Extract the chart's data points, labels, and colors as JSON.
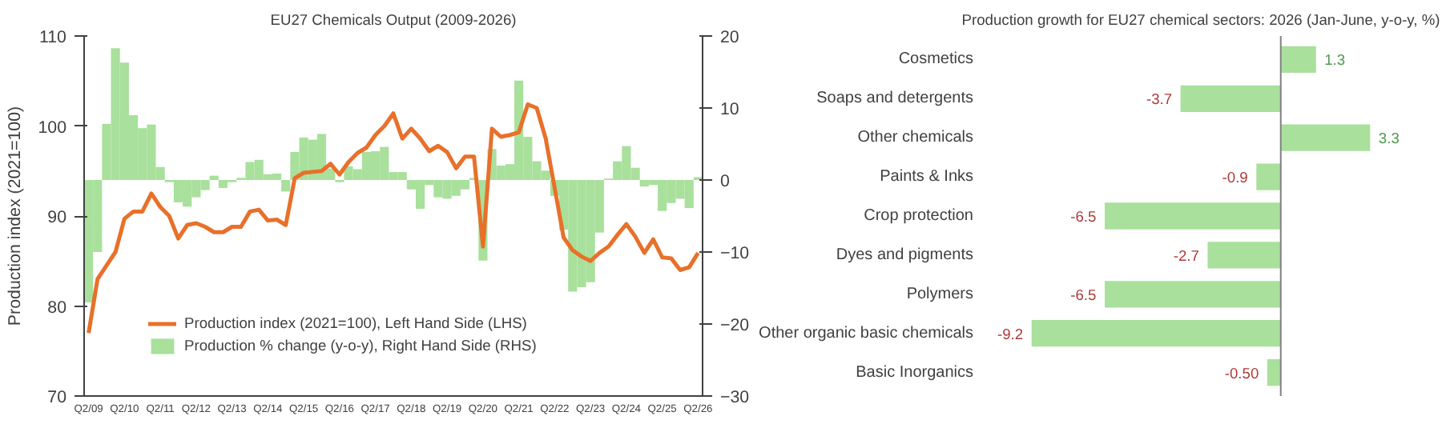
{
  "chart_data": [
    {
      "type": "bar",
      "title": "EU27 Chemicals Output (2009-2026)",
      "ylabel": "Production index (2021=100)",
      "categories": [
        "Q2/09",
        null,
        null,
        null,
        "Q2/10",
        null,
        null,
        null,
        "Q2/11",
        null,
        null,
        null,
        "Q2/12",
        null,
        null,
        null,
        "Q2/13",
        null,
        null,
        null,
        "Q2/14",
        null,
        null,
        null,
        "Q2/15",
        null,
        null,
        null,
        "Q2/16",
        null,
        null,
        null,
        "Q2/17",
        null,
        null,
        null,
        "Q2/18",
        null,
        null,
        null,
        "Q2/19",
        null,
        null,
        null,
        "Q2/20",
        null,
        null,
        null,
        "Q2/21",
        null,
        null,
        null,
        "Q2/22",
        null,
        null,
        null,
        "Q2/23",
        null,
        null,
        null,
        "Q2/24",
        null,
        null,
        null,
        "Q2/25",
        null,
        null,
        null,
        "Q2/26"
      ],
      "series": [
        {
          "name": "Production % change (y-o-y), Right Hand Side (RHS)",
          "type": "bar",
          "axis": "y2",
          "color": "#a8e09c",
          "values": [
            -17,
            -10,
            7.8,
            18.3,
            16.3,
            9,
            7.2,
            7.7,
            1.8,
            -0.3,
            -3.1,
            -3.7,
            -2.4,
            -1.4,
            0.6,
            -1.1,
            -0.3,
            0.3,
            2.5,
            2.8,
            0.8,
            0.9,
            -1.6,
            3.9,
            5.9,
            5.6,
            6.4,
            1.6,
            -0.3,
            1.9,
            1.5,
            3.9,
            4,
            4.6,
            1.1,
            1.1,
            -1.3,
            -4,
            -0.7,
            -2.4,
            -2.6,
            -2.2,
            -1.3,
            0.3,
            -11.2,
            4.3,
            2,
            2.2,
            13.8,
            6,
            2.6,
            1.3,
            -2.2,
            -6.9,
            -15.5,
            -14.9,
            -14.2,
            -7.3,
            0.2,
            2.6,
            4.7,
            1.7,
            -0.9,
            -0.7,
            -4.3,
            -3.2,
            -2.6,
            -3.9,
            0.4
          ]
        },
        {
          "name": "Production index (2021=100), Left Hand Side (LHS)",
          "type": "line",
          "color": "#e8702a",
          "values": [
            77,
            83,
            84.5,
            86,
            89.7,
            90.5,
            90.5,
            92.5,
            91,
            90,
            87.5,
            89,
            89.2,
            88.8,
            88.2,
            88.2,
            88.8,
            88.8,
            90.5,
            90.7,
            89.5,
            89.6,
            89,
            94.2,
            94.8,
            94.9,
            95,
            95.8,
            94.6,
            96,
            97,
            97.6,
            99,
            100,
            101.4,
            98.6,
            99.7,
            98.6,
            97.2,
            97.8,
            97.1,
            95.3,
            96.6,
            96.6,
            86.6,
            99.7,
            98.8,
            99,
            99.3,
            102.4,
            102,
            98.6,
            93.1,
            87.6,
            86.2,
            85.5,
            85,
            85.9,
            86.6,
            87.9,
            89.1,
            87.7,
            85.9,
            87.4,
            85.4,
            85.3,
            84,
            84.3,
            85.9
          ]
        }
      ],
      "ylim": [
        70,
        110
      ],
      "yticks": [
        70,
        80,
        90,
        100,
        110
      ],
      "y2lim": [
        -30,
        20
      ],
      "y2ticks": [
        -30,
        -20,
        -10,
        0,
        10,
        20
      ],
      "legend": "bottom left",
      "grid": false
    },
    {
      "type": "bar",
      "orientation": "horizontal",
      "title": "Production growth for EU27 chemical sectors: 2026 (Jan-June, y-o-y, %)",
      "categories": [
        "Cosmetics",
        "Soaps and detergents",
        "Other chemicals",
        "Paints & Inks",
        "Crop protection",
        "Dyes and pigments",
        "Polymers",
        "Other organic basic chemicals",
        "Basic Inorganics"
      ],
      "values": [
        1.3,
        -3.7,
        3.3,
        -0.9,
        -6.5,
        -2.7,
        -6.5,
        -9.2,
        -0.5
      ],
      "value_labels": [
        "1.3",
        "-3.7",
        "3.3",
        "-0.9",
        "-6.5",
        "-2.7",
        "-6.5",
        "-9.2",
        "-0.50"
      ],
      "color": "#a8e09c",
      "grid": false
    }
  ]
}
